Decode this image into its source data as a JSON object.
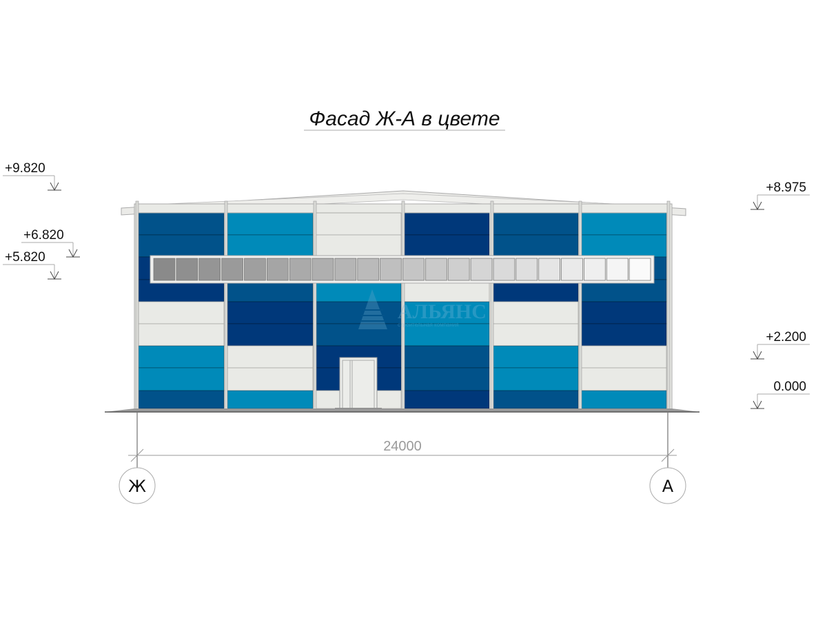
{
  "title": "Фасад Ж-А в цвете",
  "levels_left": [
    {
      "label": "+9.820"
    },
    {
      "label": "+6.820"
    },
    {
      "label": "+5.820"
    }
  ],
  "levels_right": [
    {
      "label": "+8.975"
    },
    {
      "label": "+2.200"
    },
    {
      "label": "0.000"
    }
  ],
  "dimension": "24000",
  "axes": {
    "left": "Ж",
    "right": "А"
  },
  "watermark": {
    "name": "АЛЬЯНС",
    "subtitle": "строительная компания"
  },
  "colors": {
    "A": "#01528a",
    "N": "#00387a",
    "C": "#008ab9",
    "W": "#e9eae6",
    "frame": "#d9dad6"
  },
  "panel_columns": [
    [
      "A",
      "A",
      "N",
      "N",
      "W",
      "W",
      "C",
      "C",
      "A"
    ],
    [
      "C",
      "C",
      "C",
      "A",
      "N",
      "N",
      "W",
      "W",
      "C"
    ],
    [
      "W",
      "W",
      "W",
      "C",
      "A",
      "A",
      "N",
      "N",
      "W"
    ],
    [
      "N",
      "N",
      "N",
      "W",
      "C",
      "C",
      "A",
      "A",
      "N"
    ],
    [
      "A",
      "A",
      "A",
      "N",
      "W",
      "W",
      "C",
      "C",
      "A"
    ],
    [
      "C",
      "C",
      "A",
      "A",
      "N",
      "N",
      "W",
      "W",
      "C"
    ]
  ],
  "window_panes": 22
}
